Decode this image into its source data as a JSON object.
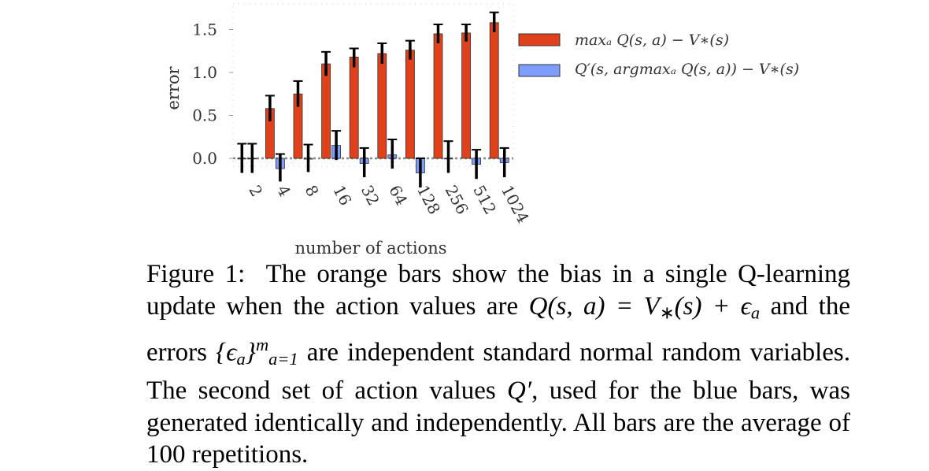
{
  "chart_data": {
    "type": "bar",
    "xlabel": "number of actions",
    "ylabel": "error",
    "ylim": [
      -0.15,
      1.75
    ],
    "yticks": [
      0.0,
      0.5,
      1.0,
      1.5
    ],
    "ytick_labels": [
      "0.0",
      "0.5",
      "1.0",
      "1.5"
    ],
    "categories": [
      "2",
      "4",
      "8",
      "16",
      "32",
      "64",
      "128",
      "256",
      "512",
      "1024"
    ],
    "series": [
      {
        "name": "max_a Q(s,a) − V*(s)",
        "legend_label": "maxₐ Q(s, a) − V∗(s)",
        "color": "#e0411a",
        "values": [
          0.0,
          0.58,
          0.75,
          1.1,
          1.18,
          1.22,
          1.26,
          1.45,
          1.46,
          1.58
        ],
        "err_low": [
          0.17,
          0.15,
          0.15,
          0.14,
          0.12,
          0.12,
          0.11,
          0.11,
          0.1,
          0.11
        ],
        "err_high": [
          0.17,
          0.15,
          0.15,
          0.14,
          0.1,
          0.12,
          0.11,
          0.11,
          0.1,
          0.12
        ]
      },
      {
        "name": "Q'(s, argmax_a Q(s,a)) − V*(s)",
        "legend_label": "Q′(s, argmaxₐ Q(s, a)) − V∗(s)",
        "color": "#7d9dff",
        "values": [
          0.0,
          -0.12,
          -0.01,
          0.15,
          -0.06,
          0.04,
          -0.17,
          0.0,
          -0.07,
          -0.05
        ],
        "err_low": [
          0.17,
          0.15,
          0.15,
          0.17,
          0.16,
          0.16,
          0.17,
          0.17,
          0.17,
          0.17
        ],
        "err_high": [
          0.17,
          0.17,
          0.17,
          0.17,
          0.18,
          0.18,
          0.17,
          0.2,
          0.17,
          0.17
        ]
      }
    ],
    "legend_position": "right"
  },
  "caption": {
    "figure_label": "Figure 1:",
    "text_1": "The orange bars show the bias in a single Q-learning update when the action values are",
    "math_q": "Q(s, a) = V",
    "math_star": "∗",
    "math_s": "(s) + ϵ",
    "math_a": "a",
    "text_2": "and the errors",
    "math_set": "{ϵ",
    "math_set_sub": "a",
    "math_set_close": "}",
    "math_set_sup": "m",
    "math_set_range": "a=1",
    "text_3": "are independent standard normal random variables. The second set of action values",
    "math_qprime": "Q′",
    "text_4": ", used for the blue bars, was generated identically and independently. All bars are the average of 100 repetitions."
  }
}
